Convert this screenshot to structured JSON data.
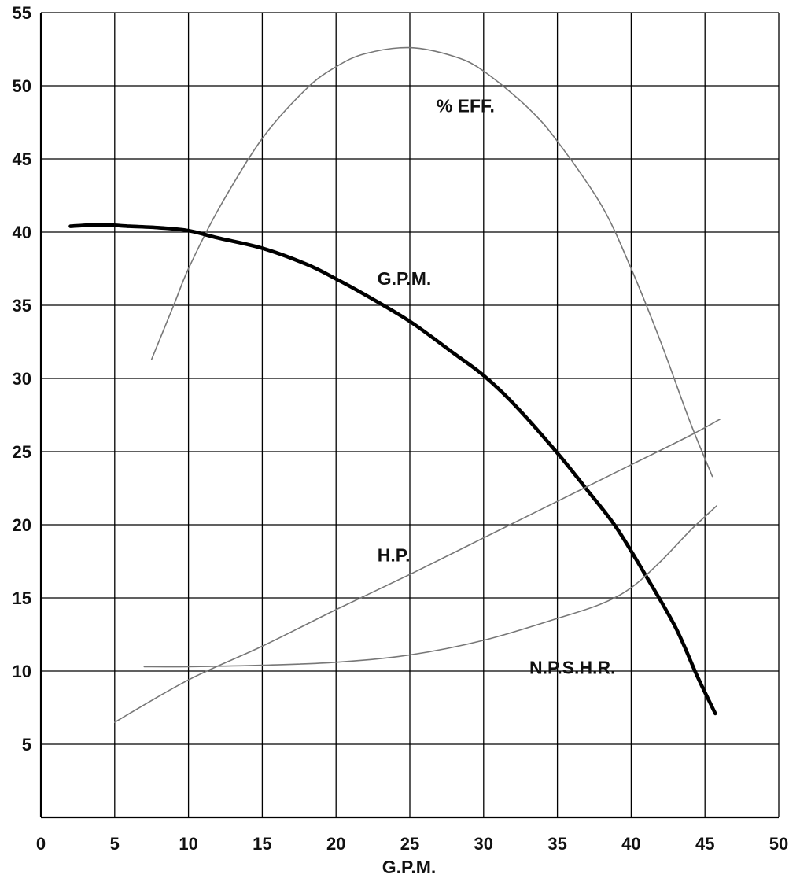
{
  "chart_data": {
    "type": "line",
    "xlabel": "G.P.M.",
    "ylabel": "",
    "title": "",
    "xlim": [
      0,
      50
    ],
    "ylim": [
      0,
      55
    ],
    "x_ticks": [
      0,
      5,
      10,
      15,
      20,
      25,
      30,
      35,
      40,
      45,
      50
    ],
    "y_ticks": [
      5,
      10,
      15,
      20,
      25,
      30,
      35,
      40,
      45,
      50,
      55
    ],
    "grid": true,
    "series": [
      {
        "name": "% EFF.",
        "color": "#777777",
        "points": [
          [
            7.5,
            31.3
          ],
          [
            9,
            35
          ],
          [
            10,
            37.5
          ],
          [
            12,
            41.5
          ],
          [
            15,
            46.4
          ],
          [
            18,
            49.8
          ],
          [
            20,
            51.3
          ],
          [
            22,
            52.2
          ],
          [
            25,
            52.6
          ],
          [
            28,
            52
          ],
          [
            30,
            51
          ],
          [
            33,
            48.5
          ],
          [
            35,
            46.2
          ],
          [
            38,
            41.8
          ],
          [
            40,
            37.5
          ],
          [
            42,
            32.5
          ],
          [
            44,
            27
          ],
          [
            45.5,
            23.3
          ]
        ]
      },
      {
        "name": "G.P.M.",
        "color": "#000000",
        "points": [
          [
            2,
            40.4
          ],
          [
            4,
            40.5
          ],
          [
            6,
            40.4
          ],
          [
            8,
            40.3
          ],
          [
            10,
            40.1
          ],
          [
            12,
            39.6
          ],
          [
            15,
            38.9
          ],
          [
            18,
            37.8
          ],
          [
            20,
            36.8
          ],
          [
            22,
            35.7
          ],
          [
            25,
            33.9
          ],
          [
            28,
            31.7
          ],
          [
            30,
            30.2
          ],
          [
            32,
            28.3
          ],
          [
            35,
            24.9
          ],
          [
            37,
            22.4
          ],
          [
            39,
            19.8
          ],
          [
            41,
            16.5
          ],
          [
            43,
            13
          ],
          [
            44.5,
            9.6
          ],
          [
            45.7,
            7.1
          ]
        ]
      },
      {
        "name": "H.P.",
        "color": "#777777",
        "points": [
          [
            5,
            6.5
          ],
          [
            10,
            9.4
          ],
          [
            15,
            11.7
          ],
          [
            20,
            14.2
          ],
          [
            25,
            16.6
          ],
          [
            30,
            19.1
          ],
          [
            35,
            21.6
          ],
          [
            40,
            24.1
          ],
          [
            44,
            26.1
          ],
          [
            46,
            27.2
          ]
        ]
      },
      {
        "name": "N.P.S.H.R.",
        "color": "#777777",
        "points": [
          [
            7,
            10.3
          ],
          [
            10,
            10.3
          ],
          [
            15,
            10.4
          ],
          [
            20,
            10.6
          ],
          [
            25,
            11.1
          ],
          [
            30,
            12.1
          ],
          [
            35,
            13.6
          ],
          [
            38,
            14.6
          ],
          [
            40,
            15.7
          ],
          [
            42,
            17.5
          ],
          [
            44,
            19.6
          ],
          [
            45.8,
            21.3
          ]
        ]
      }
    ],
    "annotations": [
      {
        "text": "% EFF.",
        "x": 26.8,
        "y": 48.2
      },
      {
        "text": "G.P.M.",
        "x": 22.8,
        "y": 36.4
      },
      {
        "text": "H.P.",
        "x": 22.8,
        "y": 17.5
      },
      {
        "text": "N.P.S.H.R.",
        "x": 33.1,
        "y": 9.8
      }
    ]
  }
}
